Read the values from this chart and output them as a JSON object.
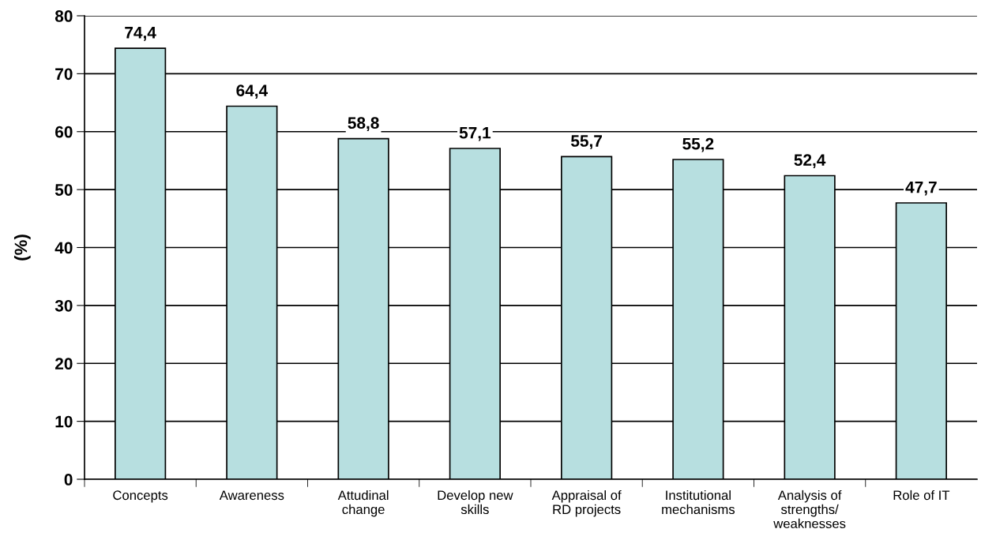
{
  "chart_data": {
    "type": "bar",
    "ylabel": "(%)",
    "categories": [
      "Concepts",
      "Awareness",
      "Attudinal\nchange",
      "Develop new\nskills",
      "Appraisal of\nRD projects",
      "Institutional\nmechanisms",
      "Analysis of\nstrengths/\nweaknesses",
      "Role of IT"
    ],
    "values": [
      74.4,
      64.4,
      58.8,
      57.1,
      55.7,
      55.2,
      52.4,
      47.7
    ],
    "value_labels": [
      "74,4",
      "64,4",
      "58,8",
      "57,1",
      "55,7",
      "55,2",
      "52,4",
      "47,7"
    ],
    "color": "#b7dfe0",
    "ylim": [
      0,
      80
    ],
    "yticks": [
      0,
      10,
      20,
      30,
      40,
      50,
      60,
      70,
      80
    ],
    "grid": "y",
    "legend": false
  }
}
